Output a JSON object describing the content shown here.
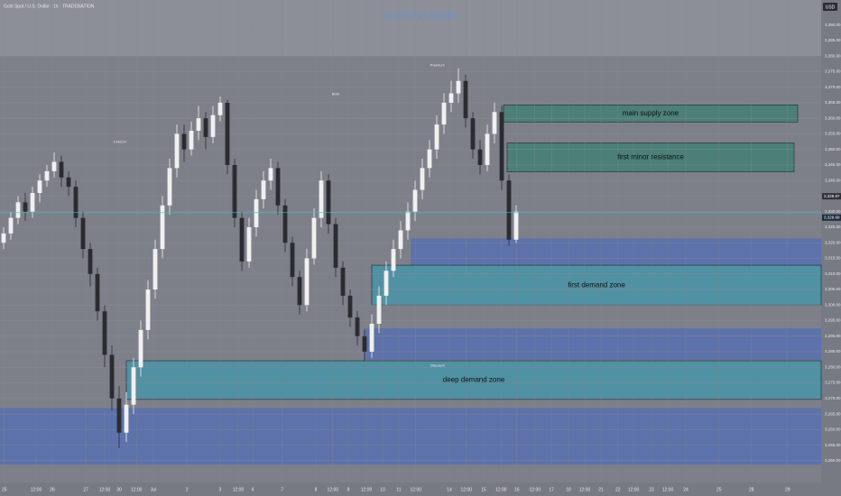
{
  "header": {
    "symbol": "Gold Spot / U.S. Dollar · 1h · TRADENATION",
    "watermark": "GoldFxMinds",
    "currency": "USD"
  },
  "chart_data": {
    "type": "candlestick",
    "ohlc": [
      [
        3320,
        3325,
        3318,
        3323
      ],
      [
        3323,
        3330,
        3321,
        3328
      ],
      [
        3328,
        3335,
        3326,
        3333
      ],
      [
        3333,
        3336,
        3327,
        3330
      ],
      [
        3330,
        3338,
        3328,
        3336
      ],
      [
        3336,
        3342,
        3333,
        3340
      ],
      [
        3340,
        3345,
        3338,
        3343
      ],
      [
        3343,
        3349,
        3341,
        3346
      ],
      [
        3346,
        3348,
        3338,
        3341
      ],
      [
        3341,
        3343,
        3335,
        3338
      ],
      [
        3338,
        3340,
        3325,
        3328
      ],
      [
        3328,
        3330,
        3315,
        3318
      ],
      [
        3318,
        3320,
        3306,
        3310
      ],
      [
        3310,
        3312,
        3295,
        3298
      ],
      [
        3298,
        3300,
        3280,
        3284
      ],
      [
        3284,
        3287,
        3266,
        3270
      ],
      [
        3270,
        3274,
        3254,
        3259
      ],
      [
        3259,
        3272,
        3256,
        3268
      ],
      [
        3268,
        3283,
        3265,
        3280
      ],
      [
        3280,
        3295,
        3277,
        3292
      ],
      [
        3292,
        3308,
        3289,
        3305
      ],
      [
        3305,
        3321,
        3302,
        3318
      ],
      [
        3318,
        3335,
        3315,
        3332
      ],
      [
        3332,
        3347,
        3329,
        3344
      ],
      [
        3344,
        3358,
        3341,
        3355
      ],
      [
        3355,
        3358,
        3346,
        3350
      ],
      [
        3350,
        3359,
        3348,
        3356
      ],
      [
        3356,
        3364,
        3353,
        3360
      ],
      [
        3360,
        3362,
        3350,
        3354
      ],
      [
        3354,
        3364,
        3352,
        3361
      ],
      [
        3361,
        3367,
        3359,
        3365
      ],
      [
        3365,
        3366,
        3342,
        3345
      ],
      [
        3345,
        3347,
        3325,
        3328
      ],
      [
        3328,
        3330,
        3311,
        3314
      ],
      [
        3314,
        3328,
        3312,
        3325
      ],
      [
        3325,
        3337,
        3322,
        3334
      ],
      [
        3334,
        3343,
        3331,
        3340
      ],
      [
        3340,
        3347,
        3337,
        3344
      ],
      [
        3344,
        3346,
        3329,
        3332
      ],
      [
        3332,
        3334,
        3317,
        3320
      ],
      [
        3320,
        3322,
        3306,
        3309
      ],
      [
        3309,
        3311,
        3297,
        3300
      ],
      [
        3300,
        3318,
        3298,
        3315
      ],
      [
        3315,
        3331,
        3313,
        3328
      ],
      [
        3328,
        3343,
        3325,
        3340
      ],
      [
        3340,
        3342,
        3323,
        3326
      ],
      [
        3326,
        3328,
        3309,
        3312
      ],
      [
        3312,
        3314,
        3300,
        3303
      ],
      [
        3303,
        3305,
        3293,
        3296
      ],
      [
        3296,
        3298,
        3287,
        3290
      ],
      [
        3290,
        3292,
        3282,
        3285
      ],
      [
        3285,
        3297,
        3283,
        3294
      ],
      [
        3294,
        3306,
        3291,
        3303
      ],
      [
        3303,
        3314,
        3300,
        3311
      ],
      [
        3311,
        3321,
        3309,
        3318
      ],
      [
        3318,
        3327,
        3315,
        3324
      ],
      [
        3324,
        3333,
        3321,
        3330
      ],
      [
        3330,
        3340,
        3327,
        3337
      ],
      [
        3337,
        3347,
        3334,
        3344
      ],
      [
        3344,
        3353,
        3341,
        3350
      ],
      [
        3350,
        3361,
        3347,
        3358
      ],
      [
        3358,
        3368,
        3355,
        3365
      ],
      [
        3365,
        3372,
        3362,
        3368
      ],
      [
        3368,
        3376,
        3365,
        3372
      ],
      [
        3372,
        3374,
        3357,
        3360
      ],
      [
        3360,
        3362,
        3347,
        3350
      ],
      [
        3350,
        3353,
        3342,
        3345
      ],
      [
        3345,
        3358,
        3343,
        3355
      ],
      [
        3355,
        3365,
        3352,
        3362
      ],
      [
        3362,
        3364,
        3337,
        3340
      ],
      [
        3340,
        3342,
        3319,
        3321
      ],
      [
        3321,
        3332,
        3320,
        3330
      ]
    ],
    "ylim": [
      3243,
      3398
    ],
    "yticks": [
      {
        "value": 3250,
        "label": "3,250.00"
      },
      {
        "value": 3255,
        "label": "3,255.00"
      },
      {
        "value": 3260,
        "label": "3,260.00"
      },
      {
        "value": 3265,
        "label": "3,265.00"
      },
      {
        "value": 3270,
        "label": "3,270.00"
      },
      {
        "value": 3275,
        "label": "3,275.00"
      },
      {
        "value": 3280,
        "label": "3,280.00"
      },
      {
        "value": 3285,
        "label": "3,285.00"
      },
      {
        "value": 3290,
        "label": "3,290.00"
      },
      {
        "value": 3295,
        "label": "3,295.00"
      },
      {
        "value": 3300,
        "label": "3,300.00"
      },
      {
        "value": 3305,
        "label": "3,305.00"
      },
      {
        "value": 3310,
        "label": "3,310.00"
      },
      {
        "value": 3315,
        "label": "3,315.00"
      },
      {
        "value": 3320,
        "label": "3,320.00"
      },
      {
        "value": 3325,
        "label": "3,325.00"
      },
      {
        "value": 3330,
        "label": "3,330.00"
      },
      {
        "value": 3335,
        "label": "3,335.00"
      },
      {
        "value": 3340,
        "label": "3,340.00"
      },
      {
        "value": 3345,
        "label": "3,345.00"
      },
      {
        "value": 3350,
        "label": "3,350.00"
      },
      {
        "value": 3355,
        "label": "3,355.00"
      },
      {
        "value": 3360,
        "label": "3,360.00"
      },
      {
        "value": 3365,
        "label": "3,365.00"
      },
      {
        "value": 3370,
        "label": "3,370.00"
      },
      {
        "value": 3375,
        "label": "3,375.00"
      },
      {
        "value": 3380,
        "label": "3,380.00"
      },
      {
        "value": 3385,
        "label": "3,385.00"
      },
      {
        "value": 3390,
        "label": "3,390.00"
      }
    ],
    "xlim": [
      0,
      113.75
    ],
    "xticks": [
      {
        "value": 0.6,
        "label": "25"
      },
      {
        "value": 5,
        "label": "12:00"
      },
      {
        "value": 7.25,
        "label": "26"
      },
      {
        "value": 11.9,
        "label": "27"
      },
      {
        "value": 14.5,
        "label": "12:00"
      },
      {
        "value": 16.5,
        "label": "30"
      },
      {
        "value": 18.9,
        "label": "12:00"
      },
      {
        "value": 21.25,
        "label": "Jul"
      },
      {
        "value": 25.9,
        "label": "2"
      },
      {
        "value": 30.5,
        "label": "3"
      },
      {
        "value": 33,
        "label": "12:00"
      },
      {
        "value": 35,
        "label": "4"
      },
      {
        "value": 39.1,
        "label": "7"
      },
      {
        "value": 43.75,
        "label": "8"
      },
      {
        "value": 46.1,
        "label": "12:00"
      },
      {
        "value": 48.25,
        "label": "9"
      },
      {
        "value": 50.75,
        "label": "12:00"
      },
      {
        "value": 53,
        "label": "10"
      },
      {
        "value": 55.25,
        "label": "11"
      },
      {
        "value": 57.6,
        "label": "12:00"
      },
      {
        "value": 62.25,
        "label": "14"
      },
      {
        "value": 64.6,
        "label": "12:00"
      },
      {
        "value": 67,
        "label": "15"
      },
      {
        "value": 69.4,
        "label": "12:00"
      },
      {
        "value": 71.6,
        "label": "16"
      },
      {
        "value": 74.1,
        "label": "12:00"
      },
      {
        "value": 76.4,
        "label": "17"
      },
      {
        "value": 78.75,
        "label": "18"
      },
      {
        "value": 81,
        "label": "12:00"
      },
      {
        "value": 83.25,
        "label": "21"
      },
      {
        "value": 85.6,
        "label": "22"
      },
      {
        "value": 87.75,
        "label": "12:00"
      },
      {
        "value": 90.25,
        "label": "23"
      },
      {
        "value": 92.5,
        "label": "12:00"
      },
      {
        "value": 95,
        "label": "24"
      },
      {
        "value": 99.6,
        "label": "25"
      },
      {
        "value": 104.1,
        "label": "28"
      },
      {
        "value": 109.1,
        "label": "29"
      }
    ],
    "zones": [
      {
        "top": 3398,
        "bottom": 3380,
        "x0": 0,
        "x1": 113.75,
        "color": "#8e9099"
      },
      {
        "top": 3321.4,
        "bottom": 3312.8,
        "x0": 56.9,
        "x1": 113.75,
        "color": "#5a6fae"
      },
      {
        "top": 3292.5,
        "bottom": 3282.4,
        "x0": 50.4,
        "x1": 113.75,
        "color": "#5a6fae"
      },
      {
        "top": 3266.9,
        "bottom": 3248.7,
        "x0": 0,
        "x1": 113.75,
        "color": "#5a6fae"
      },
      {
        "name": "main supply zone",
        "top": 3364.3,
        "bottom": 3358.8,
        "x0": 69.75,
        "x1": 110.5,
        "color": "#467f76"
      },
      {
        "name": "first minor resistance",
        "top": 3352.1,
        "bottom": 3342.8,
        "x0": 70.25,
        "x1": 110,
        "color": "#467f76"
      },
      {
        "name": "first demand zone",
        "top": 3312.8,
        "bottom": 3300,
        "x0": 51.5,
        "x1": 113.75,
        "color": "#4c93a6"
      },
      {
        "name": "deep demand zone",
        "top": 3282.1,
        "bottom": 3269.7,
        "x0": 17.5,
        "x1": 113.75,
        "color": "#4c93a6"
      }
    ],
    "markers": [
      {
        "label": "Premium",
        "price": 3377,
        "x": 60.6
      },
      {
        "label": "Discount",
        "price": 3280.5,
        "x": 60.6
      },
      {
        "label": "BOS",
        "price": 3367.7,
        "x": 46.5
      },
      {
        "label": "CHoCH",
        "price": 3352.4,
        "x": 16.6
      }
    ],
    "ask": {
      "value": 3329.87,
      "label": "3,329.87"
    },
    "current_price": {
      "value": 3329.69,
      "label": "3,329.69"
    }
  }
}
